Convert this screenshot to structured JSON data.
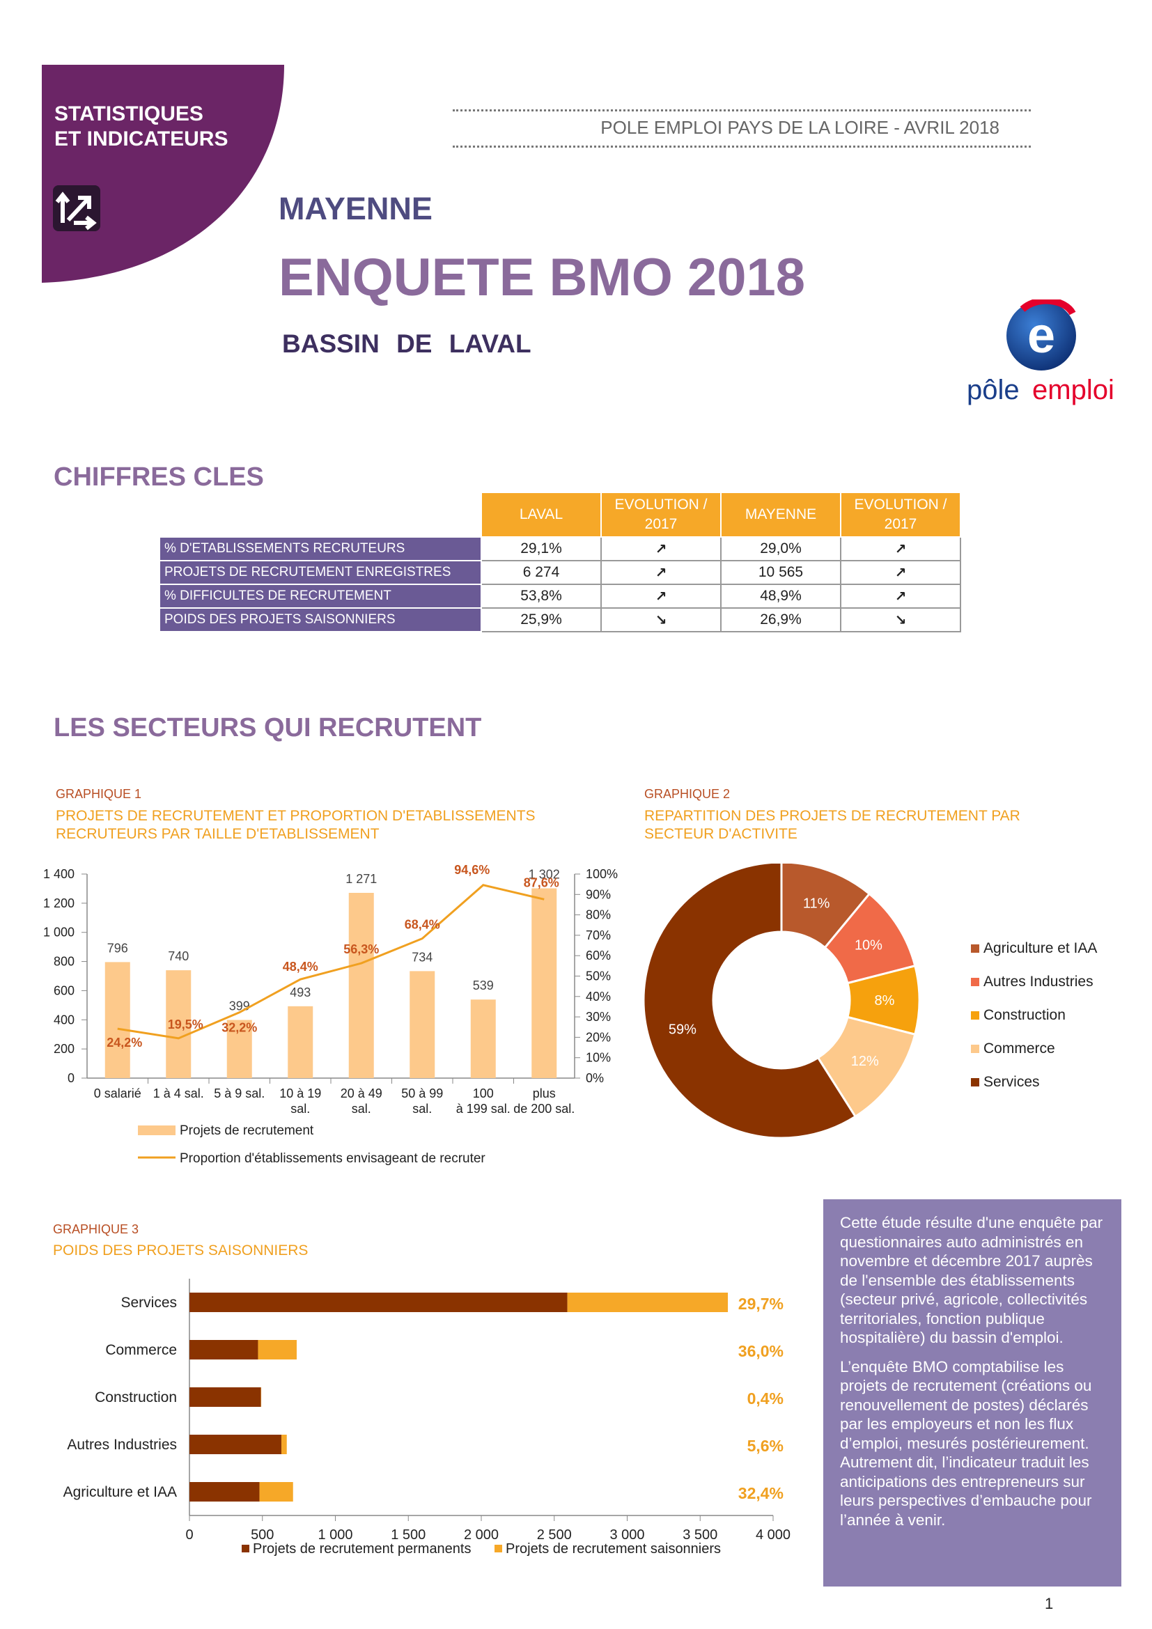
{
  "header": {
    "corner_title": "STATISTIQUES\nET INDICATEURS",
    "top_right": "POLE EMPLOI PAYS DE LA LOIRE - AVRIL 2018",
    "department": "MAYENNE",
    "title": "ENQUETE BMO 2018",
    "basin_prefix": "BASSIN DE",
    "basin_name": "LAVAL",
    "logo_text_1": "pôle",
    "logo_text_2": "emploi"
  },
  "colors": {
    "purple_dark": "#6b2566",
    "purple_title": "#8a6a9b",
    "navy_title": "#4e4b80",
    "orange": "#f6a828",
    "label_bg": "#6a5a95",
    "brown": "#8a3300",
    "peach": "#fdc98b",
    "note_bg": "#8b7eb0"
  },
  "key_figures": {
    "heading": "CHIFFRES CLES",
    "columns": [
      "LAVAL",
      "EVOLUTION / 2017",
      "MAYENNE",
      "EVOLUTION / 2017"
    ],
    "rows": [
      {
        "label": "% D'ETABLISSEMENTS RECRUTEURS",
        "laval": "29,1%",
        "evo_laval": "↗",
        "mayenne": "29,0%",
        "evo_mayenne": "↗"
      },
      {
        "label": "PROJETS DE RECRUTEMENT ENREGISTRES",
        "laval": "6 274",
        "evo_laval": "↗",
        "mayenne": "10 565",
        "evo_mayenne": "↗"
      },
      {
        "label": "% DIFFICULTES DE RECRUTEMENT",
        "laval": "53,8%",
        "evo_laval": "↗",
        "mayenne": "48,9%",
        "evo_mayenne": "↗"
      },
      {
        "label": "POIDS DES PROJETS SAISONNIERS",
        "laval": "25,9%",
        "evo_laval": "↘",
        "mayenne": "26,9%",
        "evo_mayenne": "↘"
      }
    ]
  },
  "sectors": {
    "heading": "LES SECTEURS QUI RECRUTENT",
    "g1_label": "GRAPHIQUE 1",
    "g1_title": "PROJETS DE RECRUTEMENT ET PROPORTION D'ETABLISSEMENTS RECRUTEURS PAR TAILLE D'ETABLISSEMENT",
    "g2_label": "GRAPHIQUE 2",
    "g2_title": "REPARTITION DES PROJETS DE RECRUTEMENT PAR SECTEUR D'ACTIVITE",
    "g3_label": "GRAPHIQUE 3",
    "g3_title": "POIDS DES PROJETS SAISONNIERS"
  },
  "note": {
    "p1": "Cette étude résulte d'une enquête par questionnaires auto administrés en novembre et décembre 2017 auprès de l'ensemble des établissements (secteur privé, agricole, collectivités territoriales, fonction publique hospitalière) du bassin d'emploi.",
    "p2": "L’enquête BMO comptabilise les projets de recrutement (créations ou renouvellement de postes) déclarés par les employeurs et non les flux d’emploi, mesurés postérieurement. Autrement dit, l’indicateur traduit les anticipations des entrepreneurs sur leurs perspectives d’embauche pour l’année à venir."
  },
  "page_number": "1",
  "chart_data": [
    {
      "type": "bar",
      "categories": [
        "0 salarié",
        "1 à 4 sal.",
        "5 à 9 sal.",
        "10 à 19 sal.",
        "20 à 49 sal.",
        "50 à 99 sal.",
        "100 à 199 sal.",
        "plus de 200 sal."
      ],
      "series": [
        {
          "name": "Projets de recrutement",
          "type": "bar",
          "axis": "left",
          "color": "#fdc98b",
          "values": [
            796,
            740,
            399,
            493,
            1271,
            734,
            539,
            1302
          ],
          "labels": [
            "796",
            "740",
            "399",
            "493",
            "1 271",
            "734",
            "539",
            "1 302"
          ]
        },
        {
          "name": "Proportion d'établissements envisageant de recruter",
          "type": "line",
          "axis": "right",
          "color": "#f0a020",
          "values": [
            24.2,
            19.5,
            32.2,
            48.4,
            56.3,
            68.4,
            94.6,
            87.6
          ],
          "labels": [
            "24,2%",
            "19,5%",
            "32,2%",
            "48,4%",
            "56,3%",
            "68,4%",
            "94,6%",
            "87,6%"
          ]
        }
      ],
      "ylim": [
        0,
        1400
      ],
      "y_ticks": [
        "0",
        "200",
        "400",
        "600",
        "800",
        "1 000",
        "1 200",
        "1 400"
      ],
      "y2lim": [
        0,
        100
      ],
      "y2_ticks": [
        "0%",
        "10%",
        "20%",
        "30%",
        "40%",
        "50%",
        "60%",
        "70%",
        "80%",
        "90%",
        "100%"
      ],
      "legend": "bottom-left"
    },
    {
      "type": "pie",
      "donut": true,
      "labels": [
        "Agriculture et IAA",
        "Autres Industries",
        "Construction",
        "Commerce",
        "Services"
      ],
      "values": [
        11,
        10,
        8,
        12,
        59
      ],
      "value_labels": [
        "11%",
        "10%",
        "8%",
        "12%",
        "59%"
      ],
      "colors": [
        "#b8592c",
        "#f06a48",
        "#f6a10d",
        "#fdc98b",
        "#8a3300"
      ],
      "legend": "right"
    },
    {
      "type": "bar",
      "orientation": "horizontal",
      "stacked": true,
      "categories": [
        "Services",
        "Commerce",
        "Construction",
        "Autres Industries",
        "Agriculture et IAA"
      ],
      "series": [
        {
          "name": "Projets de recrutement permanents",
          "color": "#8a3300",
          "values": [
            2590,
            470,
            490,
            630,
            480
          ]
        },
        {
          "name": "Projets de recrutement saisonniers",
          "color": "#f6a828",
          "values": [
            1100,
            265,
            2,
            37,
            230
          ]
        }
      ],
      "annotations": [
        "29,7%",
        "36,0%",
        "0,4%",
        "5,6%",
        "32,4%"
      ],
      "xlim": [
        0,
        4000
      ],
      "x_ticks": [
        "0",
        "500",
        "1 000",
        "1 500",
        "2 000",
        "2 500",
        "3 000",
        "3 500",
        "4 000"
      ],
      "legend": "bottom"
    }
  ]
}
